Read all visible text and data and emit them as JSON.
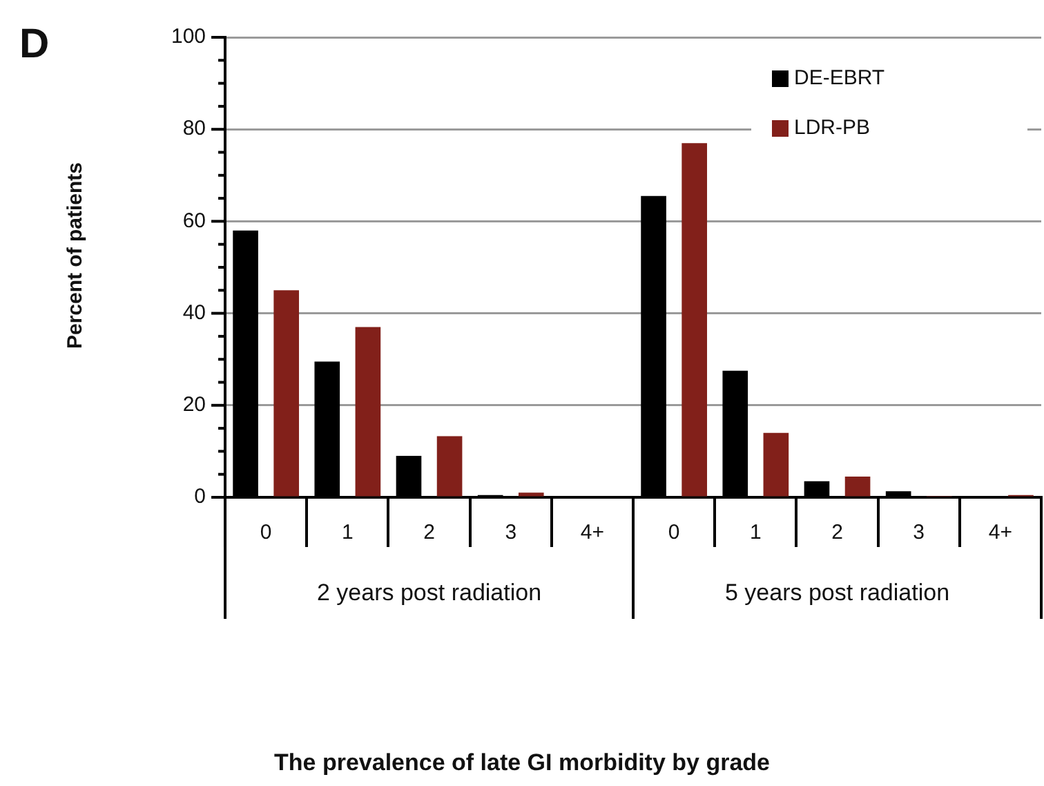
{
  "chart_data": {
    "type": "bar",
    "title": "D",
    "ylabel": "Percent of patients",
    "categories": [
      "0",
      "1",
      "2",
      "3",
      "4+",
      "0",
      "1",
      "2",
      "3",
      "4+"
    ],
    "series": [
      {
        "name": "DE-EBRT",
        "color": "#000000",
        "values": [
          58,
          29.5,
          9,
          0.5,
          0,
          65.5,
          27.5,
          3.5,
          1.3,
          0
        ]
      },
      {
        "name": "LDR-PB",
        "color": "#82201a",
        "values": [
          45,
          37,
          13.3,
          1,
          0,
          77,
          14,
          4.5,
          0.3,
          0.5
        ]
      }
    ],
    "annotations": [
      "2 years post radiation",
      "5 years post radiation",
      "The prevalence of late GI morbidity by grade"
    ],
    "ylim": [
      0,
      100
    ],
    "yticks": [
      0,
      {
        "value": 5,
        "label": null
      },
      {
        "value": 10,
        "label": null
      },
      {
        "value": 15,
        "label": null
      },
      20,
      {
        "value": 25,
        "label": null
      },
      {
        "value": 30,
        "label": null
      },
      {
        "value": 35,
        "label": null
      },
      40,
      {
        "value": 45,
        "label": null
      },
      {
        "value": 50,
        "label": null
      },
      {
        "value": 55,
        "label": null
      },
      60,
      {
        "value": 65,
        "label": null
      },
      {
        "value": 70,
        "label": null
      },
      {
        "value": 75,
        "label": null
      },
      80,
      {
        "value": 85,
        "label": null
      },
      {
        "value": 90,
        "label": null
      },
      {
        "value": 95,
        "label": null
      },
      100
    ],
    "grid": "y",
    "legend": "top right"
  }
}
